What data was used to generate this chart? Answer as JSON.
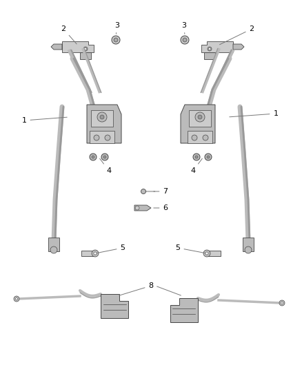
{
  "bg": "#ffffff",
  "lc": "#444444",
  "gray1": "#999999",
  "gray2": "#bbbbbb",
  "gray3": "#cccccc",
  "dark": "#555555",
  "fs": 8,
  "fig_w": 4.38,
  "fig_h": 5.33,
  "dpi": 100
}
